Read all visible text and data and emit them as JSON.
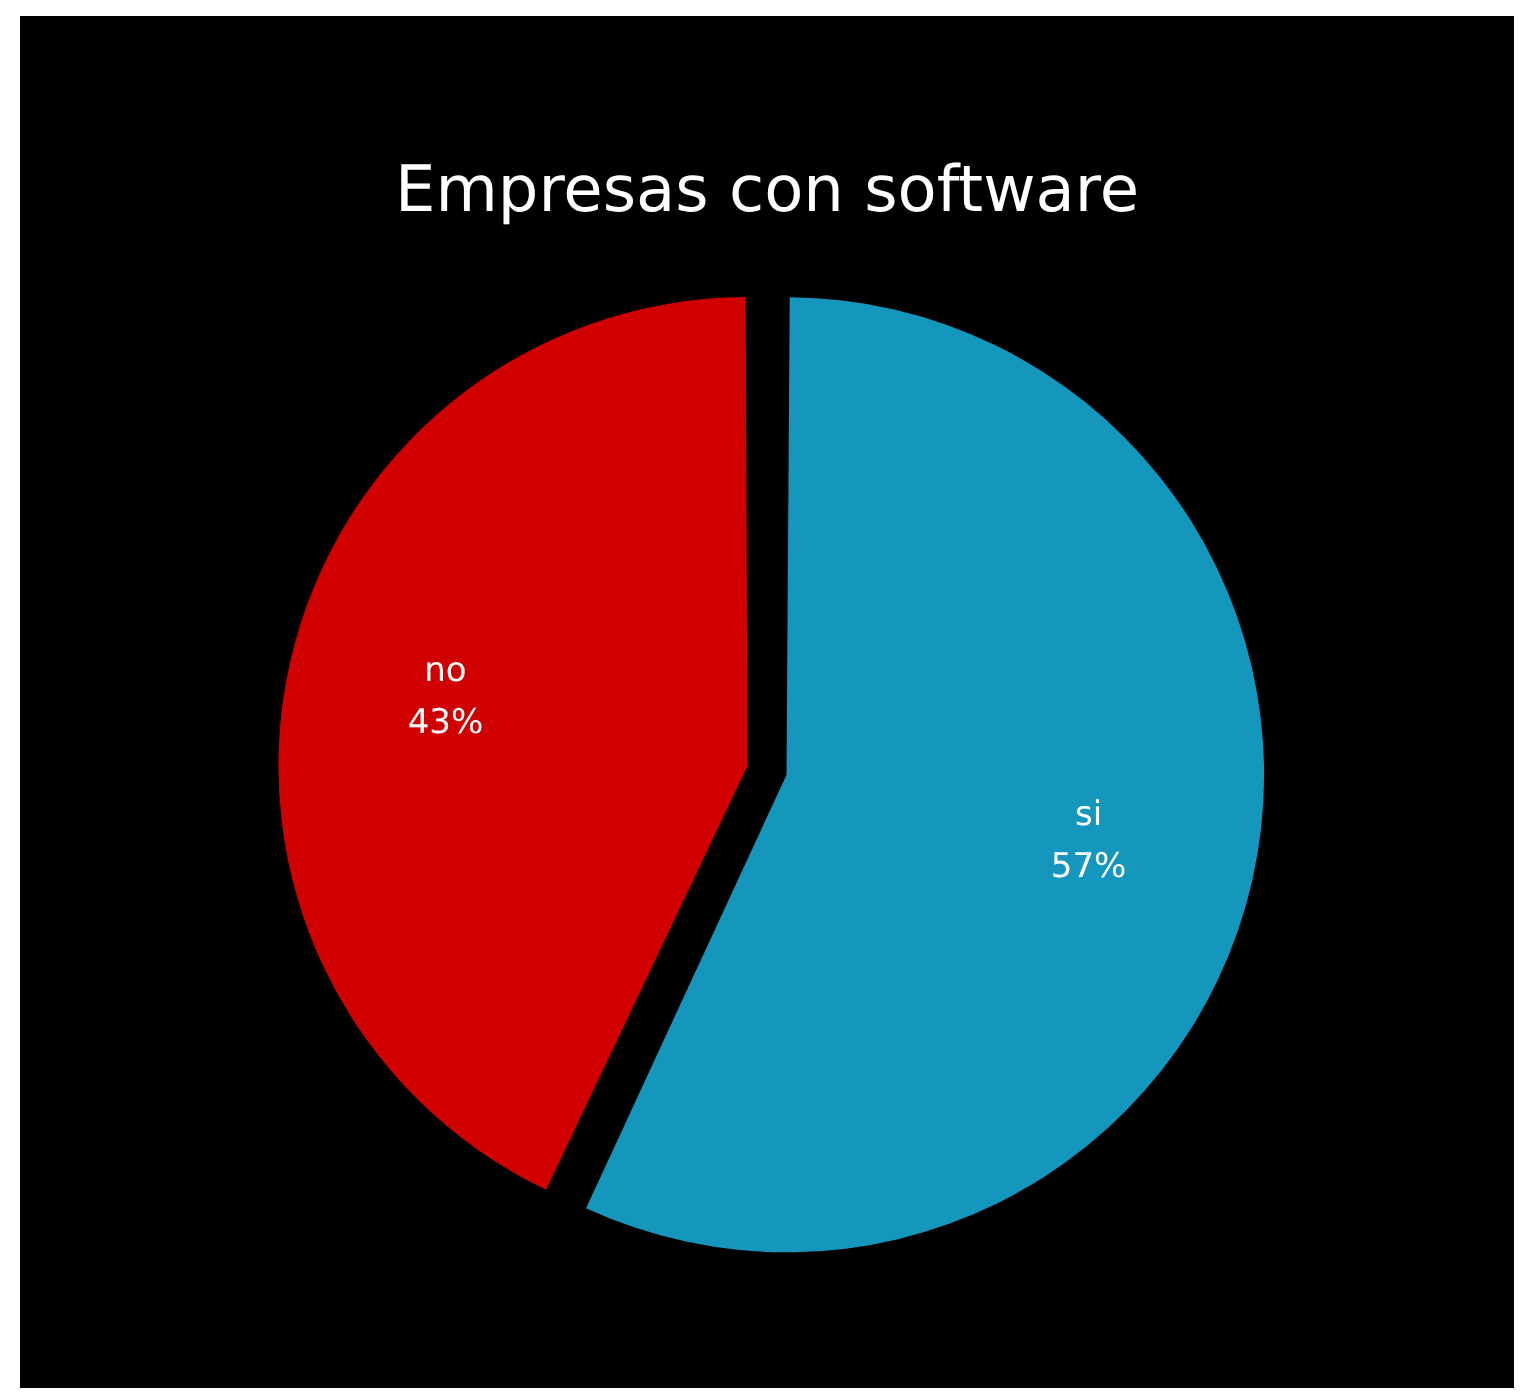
{
  "chart_data": {
    "type": "pie",
    "title": "Empresas con software",
    "categories": [
      "si",
      "no"
    ],
    "values": [
      57,
      43
    ],
    "value_labels": [
      "57%",
      "43%"
    ],
    "colors": [
      "#1596bd",
      "#d00000"
    ],
    "legend": false
  }
}
